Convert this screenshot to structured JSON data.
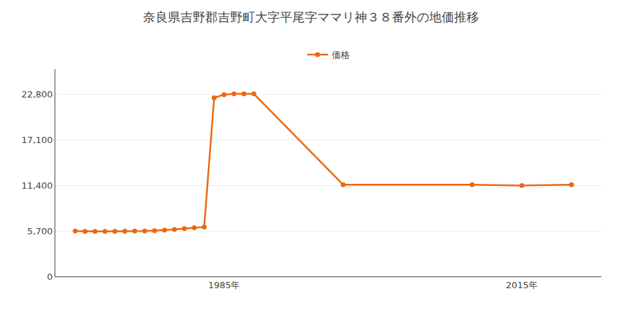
{
  "chart_data": {
    "type": "line",
    "title": "奈良県吉野郡吉野町大字平尾字ママリ神３８番外の地価推移",
    "x": [
      1970,
      1971,
      1972,
      1973,
      1974,
      1975,
      1976,
      1977,
      1978,
      1979,
      1980,
      1981,
      1982,
      1983,
      1984,
      1985,
      1986,
      1987,
      1988,
      1997,
      2010,
      2015,
      2020
    ],
    "series": [
      {
        "name": "価格",
        "color": "#EE6611",
        "marker": "circle",
        "values": [
          5700,
          5650,
          5650,
          5650,
          5650,
          5680,
          5700,
          5700,
          5750,
          5800,
          5900,
          6000,
          6100,
          6200,
          22400,
          22800,
          22900,
          22900,
          22900,
          11500,
          11500,
          11400,
          11500
        ]
      }
    ],
    "xlim": [
      1968,
      2023
    ],
    "xticks": [
      {
        "value": 1985,
        "label": "1985年"
      },
      {
        "value": 2015,
        "label": "2015年"
      }
    ],
    "ylim": [
      0,
      26000
    ],
    "yticks": [
      0,
      {
        "value": 5700,
        "label": "5,700"
      },
      {
        "value": 11400,
        "label": "11,400"
      },
      {
        "value": 17100,
        "label": "17,100"
      },
      {
        "value": 22800,
        "label": "22,800"
      }
    ],
    "grid": true,
    "legend": "top"
  }
}
